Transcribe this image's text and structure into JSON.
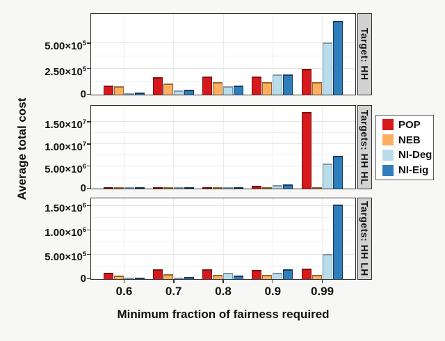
{
  "figure": {
    "background": "#f7f7f6",
    "panel_background": "#ffffff",
    "facet_strip_background": "#d2d2d2"
  },
  "chart_data": {
    "type": "bar",
    "title": "",
    "xlabel": "Minimum fraction of fairness required",
    "ylabel": "Average total cost",
    "categories": [
      "0.6",
      "0.7",
      "0.8",
      "0.9",
      "0.99"
    ],
    "grid": "on",
    "legend": {
      "position": "right",
      "entries": [
        {
          "name": "POP",
          "color": "#d7191c",
          "border": "#7a1013"
        },
        {
          "name": "NEB",
          "color": "#fdae61",
          "border": "#96682f"
        },
        {
          "name": "NI-Deg",
          "color": "#b8dcec",
          "border": "#7e97a3"
        },
        {
          "name": "NI-Eig",
          "color": "#2f7ebc",
          "border": "#17395a"
        }
      ]
    },
    "panels": [
      {
        "facet_label": "Target: HH",
        "ylim": [
          0,
          780000
        ],
        "yticks": [
          {
            "value": 0,
            "label": "0"
          },
          {
            "value": 250000,
            "label": "2.50×10^5"
          },
          {
            "value": 500000,
            "label": "5.00×10^5"
          }
        ],
        "series": [
          {
            "name": "POP",
            "values": [
              90000,
              170000,
              180000,
              180000,
              250000
            ]
          },
          {
            "name": "NEB",
            "values": [
              85000,
              110000,
              120000,
              120000,
              120000
            ]
          },
          {
            "name": "NI-Deg",
            "values": [
              14000,
              42000,
              85000,
              195000,
              510000
            ]
          },
          {
            "name": "NI-Eig",
            "values": [
              22000,
              50000,
              90000,
              195000,
              720000
            ]
          }
        ]
      },
      {
        "facet_label": "Targets: HH HL",
        "ylim": [
          0,
          18500000
        ],
        "yticks": [
          {
            "value": 0,
            "label": "0"
          },
          {
            "value": 5000000,
            "label": "5.00×10^6"
          },
          {
            "value": 10000000,
            "label": "1.00×10^7"
          },
          {
            "value": 15000000,
            "label": "1.50×10^7"
          }
        ],
        "series": [
          {
            "name": "POP",
            "values": [
              150000,
              200000,
              250000,
              650000,
              17200000
            ]
          },
          {
            "name": "NEB",
            "values": [
              100000,
              100000,
              100000,
              300000,
              200000
            ]
          },
          {
            "name": "NI-Deg",
            "values": [
              120000,
              100000,
              120000,
              750000,
              5600000
            ]
          },
          {
            "name": "NI-Eig",
            "values": [
              120000,
              120000,
              180000,
              900000,
              7300000
            ]
          }
        ]
      },
      {
        "facet_label": "Targets: HH LH",
        "ylim": [
          0,
          1640000
        ],
        "yticks": [
          {
            "value": 0,
            "label": "0"
          },
          {
            "value": 500000,
            "label": "5.00×10^5"
          },
          {
            "value": 1000000,
            "label": "1.00×10^6"
          },
          {
            "value": 1500000,
            "label": "1.50×10^6"
          }
        ],
        "series": [
          {
            "name": "POP",
            "values": [
              135000,
              200000,
              195000,
              190000,
              220000
            ]
          },
          {
            "name": "NEB",
            "values": [
              70000,
              95000,
              85000,
              80000,
              80000
            ]
          },
          {
            "name": "NI-Deg",
            "values": [
              15000,
              35000,
              130000,
              130000,
              520000
            ]
          },
          {
            "name": "NI-Eig",
            "values": [
              15000,
              45000,
              75000,
              200000,
              1530000
            ]
          }
        ]
      }
    ]
  }
}
